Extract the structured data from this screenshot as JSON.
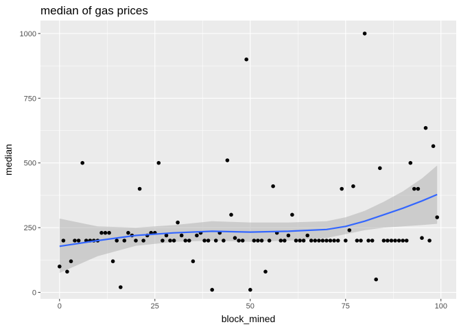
{
  "chart_data": {
    "type": "scatter",
    "title": "median of gas prices",
    "xlabel": "block_mined",
    "ylabel": "median",
    "xlim": [
      -5,
      104
    ],
    "ylim": [
      -25,
      1050
    ],
    "x_ticks": [
      0,
      25,
      50,
      75,
      100
    ],
    "y_ticks": [
      0,
      250,
      500,
      750,
      1000
    ],
    "x_tick_labels": [
      "0",
      "25",
      "50",
      "75",
      "100"
    ],
    "y_tick_labels": [
      "0",
      "250",
      "500",
      "750",
      "1000"
    ],
    "grid": true,
    "legend": "none",
    "colors": {
      "panel_background": "#ebebeb",
      "grid": "#ffffff",
      "points": "#000000",
      "smooth_line": "#3366ff",
      "confidence_band": "#b3b3b3"
    },
    "points": [
      [
        0,
        100
      ],
      [
        1,
        200
      ],
      [
        2,
        80
      ],
      [
        3,
        120
      ],
      [
        4,
        200
      ],
      [
        5,
        200
      ],
      [
        6,
        500
      ],
      [
        7,
        200
      ],
      [
        8,
        200
      ],
      [
        9,
        200
      ],
      [
        10,
        200
      ],
      [
        11,
        230
      ],
      [
        12,
        230
      ],
      [
        13,
        230
      ],
      [
        14,
        120
      ],
      [
        15,
        200
      ],
      [
        16,
        20
      ],
      [
        17,
        200
      ],
      [
        18,
        230
      ],
      [
        19,
        220
      ],
      [
        20,
        200
      ],
      [
        21,
        400
      ],
      [
        22,
        200
      ],
      [
        23,
        220
      ],
      [
        24,
        230
      ],
      [
        25,
        230
      ],
      [
        26,
        500
      ],
      [
        27,
        200
      ],
      [
        28,
        220
      ],
      [
        29,
        200
      ],
      [
        30,
        200
      ],
      [
        31,
        270
      ],
      [
        32,
        220
      ],
      [
        33,
        200
      ],
      [
        34,
        200
      ],
      [
        35,
        120
      ],
      [
        36,
        220
      ],
      [
        37,
        230
      ],
      [
        38,
        200
      ],
      [
        39,
        200
      ],
      [
        40,
        10
      ],
      [
        41,
        200
      ],
      [
        42,
        230
      ],
      [
        43,
        200
      ],
      [
        44,
        510
      ],
      [
        45,
        300
      ],
      [
        46,
        210
      ],
      [
        47,
        200
      ],
      [
        48,
        200
      ],
      [
        49,
        900
      ],
      [
        50,
        10
      ],
      [
        51,
        200
      ],
      [
        52,
        200
      ],
      [
        53,
        200
      ],
      [
        54,
        80
      ],
      [
        55,
        200
      ],
      [
        56,
        410
      ],
      [
        57,
        230
      ],
      [
        58,
        200
      ],
      [
        59,
        200
      ],
      [
        60,
        220
      ],
      [
        61,
        300
      ],
      [
        62,
        200
      ],
      [
        63,
        200
      ],
      [
        64,
        200
      ],
      [
        65,
        220
      ],
      [
        66,
        200
      ],
      [
        67,
        200
      ],
      [
        68,
        200
      ],
      [
        69,
        200
      ],
      [
        70,
        200
      ],
      [
        71,
        200
      ],
      [
        72,
        200
      ],
      [
        73,
        200
      ],
      [
        74,
        400
      ],
      [
        75,
        200
      ],
      [
        76,
        240
      ],
      [
        77,
        410
      ],
      [
        78,
        200
      ],
      [
        79,
        200
      ],
      [
        80,
        1000
      ],
      [
        81,
        200
      ],
      [
        82,
        200
      ],
      [
        83,
        50
      ],
      [
        84,
        480
      ],
      [
        85,
        200
      ],
      [
        86,
        200
      ],
      [
        87,
        200
      ],
      [
        88,
        200
      ],
      [
        89,
        200
      ],
      [
        90,
        200
      ],
      [
        91,
        200
      ],
      [
        92,
        500
      ],
      [
        93,
        400
      ],
      [
        94,
        400
      ],
      [
        95,
        210
      ],
      [
        96,
        635
      ],
      [
        97,
        200
      ],
      [
        98,
        565
      ],
      [
        99,
        290
      ]
    ],
    "smooth": {
      "method": "loess",
      "x": [
        0,
        10,
        20,
        30,
        40,
        50,
        60,
        70,
        75,
        80,
        85,
        90,
        95,
        99
      ],
      "y": [
        178,
        200,
        220,
        230,
        236,
        233,
        236,
        243,
        255,
        275,
        300,
        325,
        353,
        378
      ],
      "lower": [
        75,
        140,
        180,
        195,
        200,
        195,
        200,
        210,
        225,
        240,
        250,
        255,
        260,
        265
      ],
      "upper": [
        285,
        255,
        250,
        260,
        275,
        270,
        270,
        275,
        290,
        315,
        350,
        390,
        440,
        490
      ]
    }
  }
}
